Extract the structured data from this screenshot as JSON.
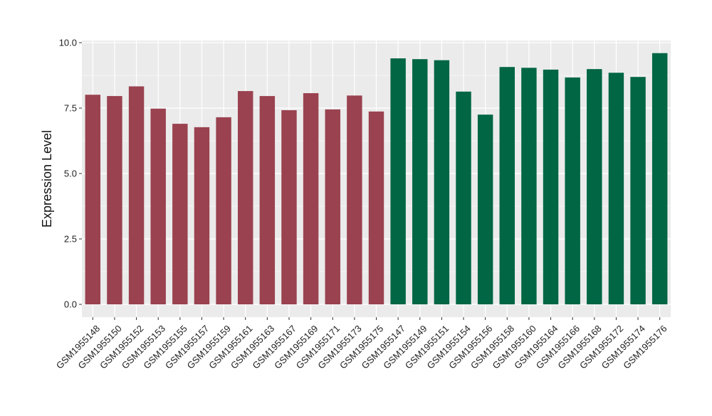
{
  "chart_data": {
    "type": "bar",
    "title": "",
    "xlabel": "",
    "ylabel": "Expression Level",
    "ylim": [
      0,
      10
    ],
    "yticks": [
      "0.0",
      "2.5",
      "5.0",
      "7.5",
      "10.0"
    ],
    "ytick_values": [
      0,
      2.5,
      5,
      7.5,
      10
    ],
    "grid": true,
    "legend": "none",
    "colors": {
      "group_1": "#9A4250",
      "group_2": "#006644",
      "panel": "#EBEBEB",
      "gridline": "#FFFFFF"
    },
    "categories": [
      "GSM1955148",
      "GSM1955150",
      "GSM1955152",
      "GSM1955153",
      "GSM1955155",
      "GSM1955157",
      "GSM1955159",
      "GSM1955161",
      "GSM1955163",
      "GSM1955167",
      "GSM1955169",
      "GSM1955171",
      "GSM1955173",
      "GSM1955175",
      "GSM1955147",
      "GSM1955149",
      "GSM1955151",
      "GSM1955154",
      "GSM1955156",
      "GSM1955158",
      "GSM1955160",
      "GSM1955164",
      "GSM1955166",
      "GSM1955168",
      "GSM1955172",
      "GSM1955174",
      "GSM1955176"
    ],
    "values": [
      8.01,
      7.96,
      8.33,
      7.48,
      6.9,
      6.77,
      7.15,
      8.15,
      7.96,
      7.42,
      8.07,
      7.45,
      7.98,
      7.37,
      9.4,
      9.37,
      9.33,
      8.13,
      7.25,
      9.07,
      9.04,
      8.97,
      8.67,
      8.99,
      8.85,
      8.69,
      9.6
    ],
    "groups": [
      1,
      1,
      1,
      1,
      1,
      1,
      1,
      1,
      1,
      1,
      1,
      1,
      1,
      1,
      2,
      2,
      2,
      2,
      2,
      2,
      2,
      2,
      2,
      2,
      2,
      2,
      2
    ]
  }
}
